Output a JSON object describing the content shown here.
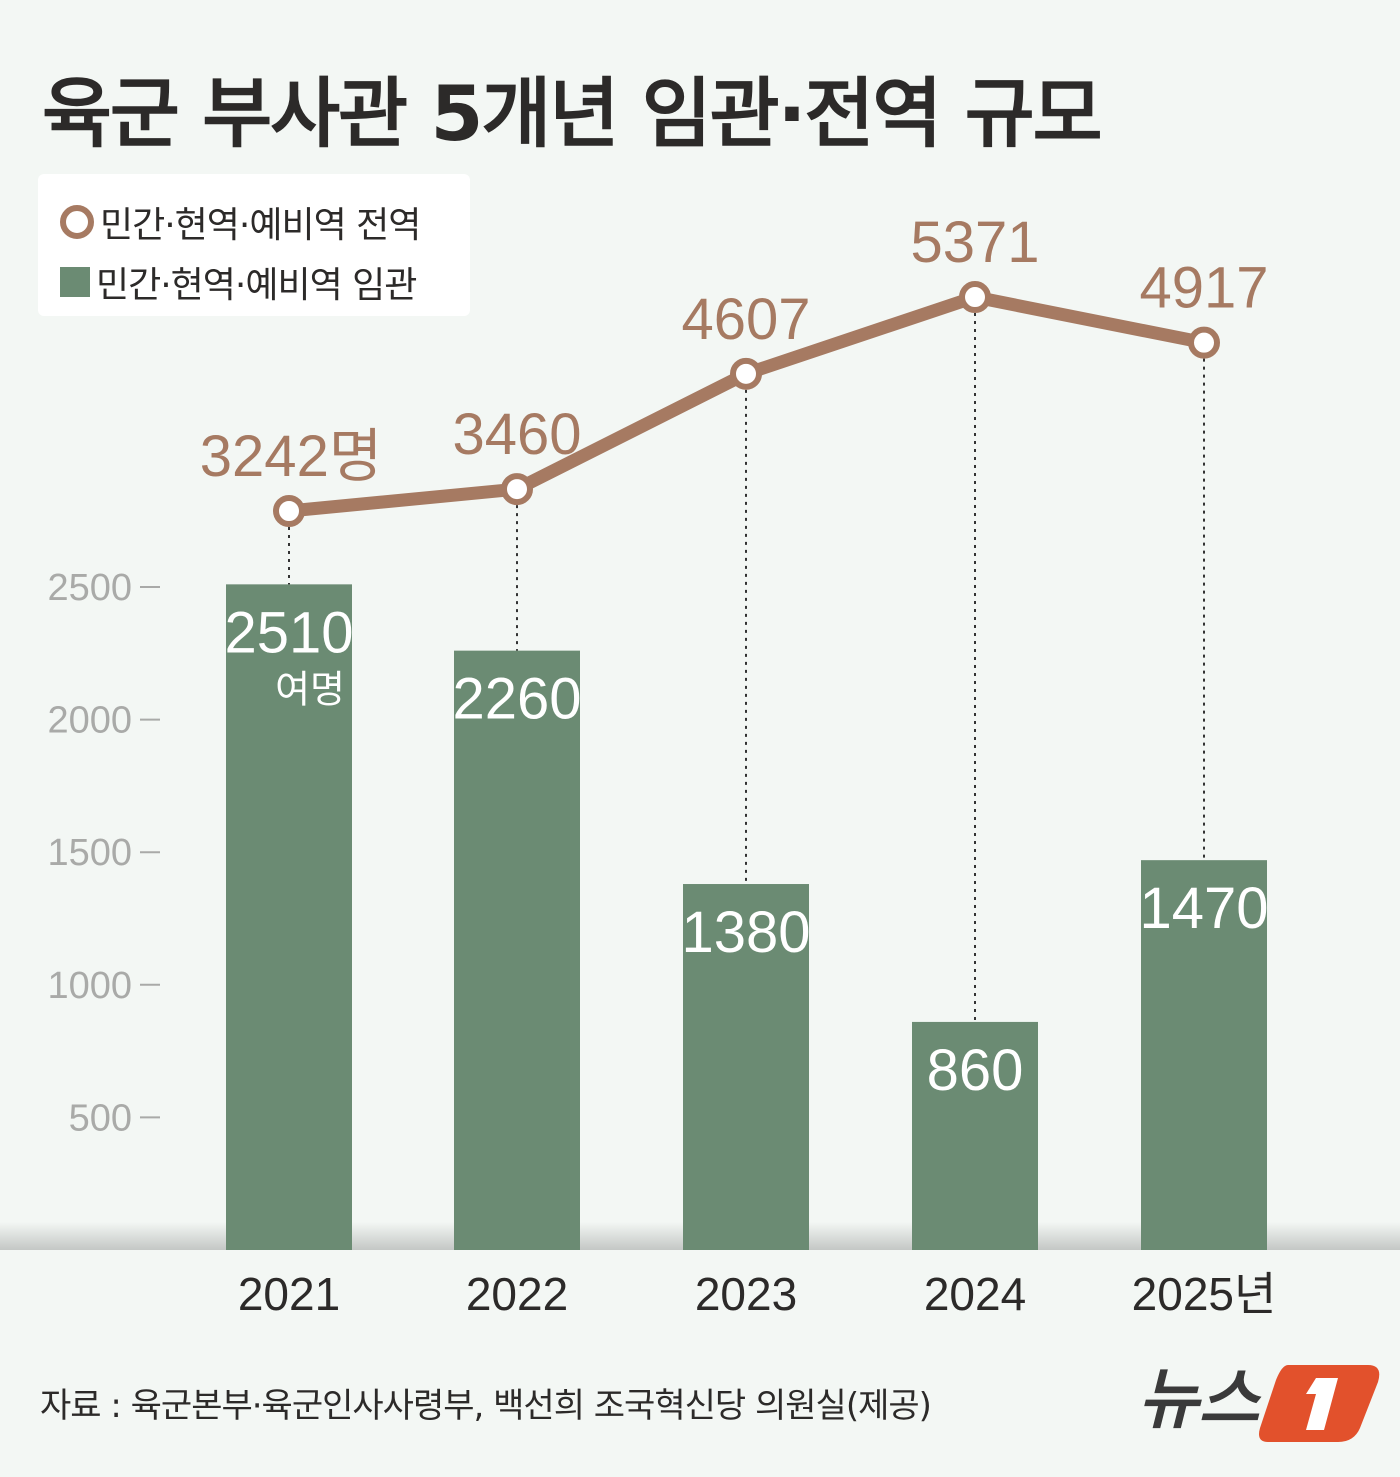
{
  "title": "육군 부사관 5개년 임관·전역 규모",
  "legend": [
    {
      "label": "민간·현역·예비역 전역",
      "marker": "circle",
      "color": "#a67a62"
    },
    {
      "label": "민간·현역·예비역 임관",
      "marker": "square",
      "color": "#6b8b73"
    }
  ],
  "source": "자료 : 육군본부·육군인사사령부, 백선희 조국혁신당 의원실(제공)",
  "logo": "뉴스1",
  "colors": {
    "background": "#f3f7f4",
    "bar": "#6b8b73",
    "line": "#a67a62",
    "axis_text": "#a9aaa8"
  },
  "chart_data": {
    "type": "bar+line",
    "categories": [
      "2021",
      "2022",
      "2023",
      "2024",
      "2025년"
    ],
    "yticks": [
      "500",
      "1000",
      "1500",
      "2000",
      "2500"
    ],
    "bar_axis_range": [
      0,
      2500
    ],
    "series": [
      {
        "name": "민간·현역·예비역 임관",
        "type": "bar",
        "values": [
          2510,
          2260,
          1380,
          860,
          1470
        ],
        "labels": [
          "2510",
          "2260",
          "1380",
          "860",
          "1470"
        ],
        "first_label_suffix": "여명"
      },
      {
        "name": "민간·현역·예비역 전역",
        "type": "line",
        "values": [
          3242,
          3460,
          4607,
          5371,
          4917
        ],
        "labels": [
          "3242명",
          "3460",
          "4607",
          "5371",
          "4917"
        ]
      }
    ]
  }
}
